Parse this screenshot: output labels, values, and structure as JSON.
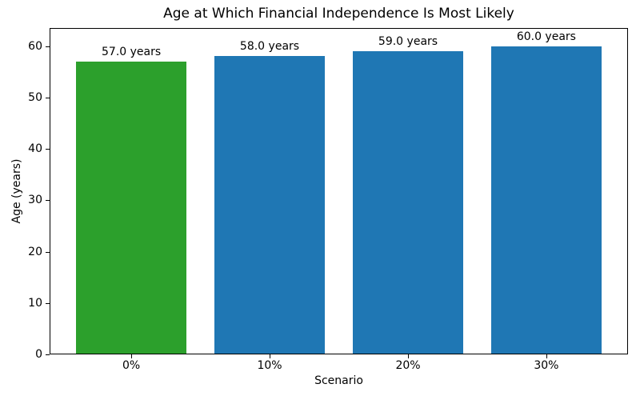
{
  "chart_data": {
    "type": "bar",
    "title": "Age at Which Financial Independence Is Most Likely",
    "xlabel": "Scenario",
    "ylabel": "Age (years)",
    "categories": [
      "0%",
      "10%",
      "20%",
      "30%"
    ],
    "values": [
      57.0,
      58.0,
      59.0,
      60.0
    ],
    "bar_labels": [
      "57.0 years",
      "58.0 years",
      "59.0 years",
      "60.0 years"
    ],
    "bar_colors": [
      "#2ca02c",
      "#1f77b4",
      "#1f77b4",
      "#1f77b4"
    ],
    "yticks": [
      0,
      10,
      20,
      30,
      40,
      50,
      60
    ],
    "ylim": [
      0,
      63.5
    ],
    "xlim": [
      -0.59,
      3.59
    ],
    "bar_width": 0.8,
    "grid": false,
    "legend": "none",
    "background": "#ffffff",
    "axis_color": "#000000"
  }
}
